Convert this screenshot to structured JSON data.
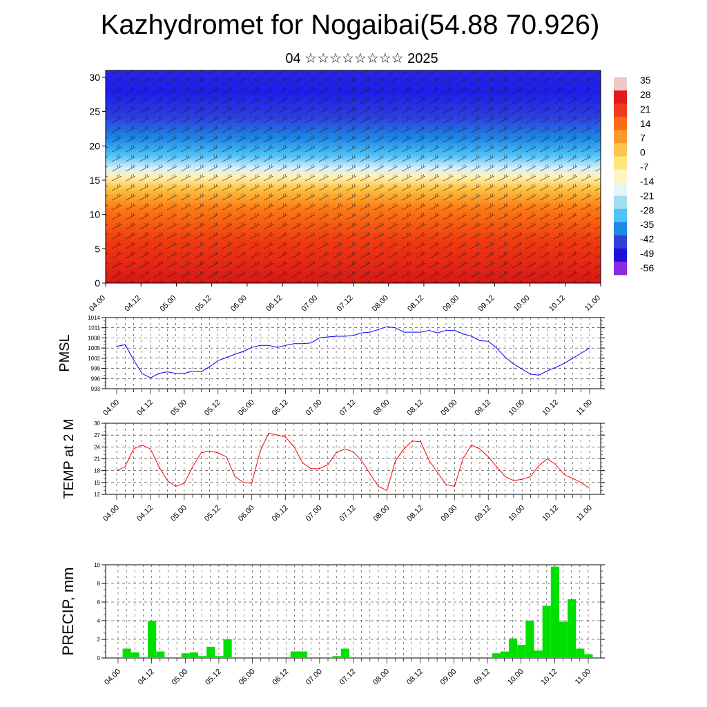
{
  "title": "Kazhydromet for Nogaibai(54.88 70.926)",
  "subtitle": "04 ☆☆☆☆☆☆☆☆ 2025",
  "time_labels": [
    "04.00",
    "04.12",
    "05.00",
    "05.12",
    "06.00",
    "06.12",
    "07.00",
    "07.12",
    "08.00",
    "08.12",
    "09.00",
    "09.12",
    "10.00",
    "10.12",
    "11.00"
  ],
  "chart_data": [
    {
      "type": "heatmap",
      "description_units": "temperature by height (km) and time with wind barbs",
      "y_ticks": [
        "0",
        "5",
        "10",
        "15",
        "20",
        "25",
        "30"
      ],
      "ylim": [
        0,
        31
      ],
      "colorbar_labels": [
        "35",
        "28",
        "21",
        "14",
        "7",
        "0",
        "-7",
        "-14",
        "-21",
        "-28",
        "-35",
        "-42",
        "-49",
        "-56"
      ],
      "colorbar_colors": [
        "#f0c8c8",
        "#e31a1c",
        "#f03b20",
        "#fd6a1a",
        "#fd9a2a",
        "#fec44f",
        "#ffe680",
        "#fff5c0",
        "#e8f4f8",
        "#a6dcf0",
        "#4fc3f7",
        "#1e88e5",
        "#3040d8",
        "#2010e0",
        "#8a2be2"
      ]
    },
    {
      "type": "line",
      "ylabel": "PMSL",
      "y_ticks": [
        "1014",
        "1011",
        "1008",
        "1005",
        "1002",
        "999",
        "996",
        "993"
      ],
      "ylim": [
        993,
        1014
      ],
      "color": "#0000ff",
      "x": [
        0,
        0.5,
        1,
        1.5,
        2,
        2.5,
        3,
        3.5,
        4,
        4.5,
        5,
        5.5,
        6,
        6.5,
        7,
        7.5,
        8,
        8.5,
        9,
        9.5,
        10,
        10.5,
        11,
        11.5,
        12,
        12.5,
        13,
        13.5,
        14,
        14.5,
        15,
        15.5,
        16,
        16.5,
        17,
        17.5,
        18,
        18.5,
        19,
        19.5,
        20,
        20.5,
        21,
        21.5,
        22,
        22.5,
        23,
        23.5,
        24,
        24.5,
        25,
        25.5,
        26,
        26.5,
        27,
        27.5,
        28
      ],
      "values": [
        1005.5,
        1006,
        1001.5,
        997.5,
        996.2,
        997.5,
        998,
        997.5,
        997.5,
        998.2,
        998,
        999.5,
        1001.3,
        1002.2,
        1003.2,
        1004,
        1005.2,
        1005.8,
        1005.8,
        1005.2,
        1005.8,
        1006.3,
        1006.3,
        1006.5,
        1008,
        1008.3,
        1008.5,
        1008.5,
        1008.7,
        1009.5,
        1009.7,
        1010.5,
        1011.3,
        1011,
        1009.7,
        1009.7,
        1009.7,
        1010.2,
        1009.5,
        1010.2,
        1010.2,
        1009.2,
        1008.5,
        1007.2,
        1007,
        1005,
        1002.3,
        1000.3,
        998.8,
        997.3,
        997,
        998.3,
        999.3,
        1000.5,
        1002,
        1003.5,
        1005
      ]
    },
    {
      "type": "line",
      "ylabel": "TEMP at 2 M",
      "y_ticks": [
        "30",
        "27",
        "24",
        "21",
        "18",
        "15",
        "12"
      ],
      "ylim": [
        12,
        30
      ],
      "color": "#ff0000",
      "x": [
        0,
        0.5,
        1,
        1.5,
        2,
        2.5,
        3,
        3.5,
        4,
        4.5,
        5,
        5.5,
        6,
        6.5,
        7,
        7.5,
        8,
        8.5,
        9,
        9.5,
        10,
        10.5,
        11,
        11.5,
        12,
        12.5,
        13,
        13.5,
        14,
        14.5,
        15,
        15.5,
        16,
        16.5,
        17,
        17.5,
        18,
        18.5,
        19,
        19.5,
        20,
        20.5,
        21,
        21.5,
        22,
        22.5,
        23,
        23.5,
        24,
        24.5,
        25,
        25.5,
        26,
        26.5,
        27,
        27.5,
        28
      ],
      "values": [
        18,
        19,
        23.5,
        24.5,
        23.5,
        19,
        15.5,
        14,
        14.8,
        19,
        22.5,
        23,
        22.5,
        21.5,
        16.5,
        15,
        14.8,
        23,
        27.5,
        27,
        26.5,
        24,
        20,
        18.5,
        18.5,
        19.5,
        22.5,
        23.5,
        22.8,
        20.5,
        17.2,
        14,
        13,
        20.5,
        23.5,
        25.5,
        25.3,
        20.5,
        17.5,
        14.5,
        14,
        21,
        24.5,
        23.5,
        21.5,
        19,
        16.5,
        15.5,
        15.8,
        16.5,
        19.3,
        21,
        19.5,
        17,
        16,
        15,
        13.5
      ]
    },
    {
      "type": "bar",
      "ylabel": "PRECIP, mm",
      "y_ticks": [
        "10",
        "8",
        "6",
        "4",
        "2",
        "0"
      ],
      "ylim": [
        0,
        10
      ],
      "color": "#00e000",
      "x": [
        0,
        1,
        2,
        3,
        4,
        5,
        6,
        7,
        8,
        9,
        10,
        11,
        12,
        13,
        14,
        15,
        16,
        17,
        18,
        19,
        20,
        21,
        22,
        23,
        24,
        25,
        26,
        27,
        28,
        29,
        30,
        31,
        32,
        33,
        34,
        35,
        36,
        37,
        38,
        39,
        40,
        41,
        42,
        43,
        44,
        45,
        46,
        47,
        48,
        49,
        50,
        51,
        52,
        53,
        54,
        55,
        56
      ],
      "values": [
        0,
        1,
        0.6,
        0,
        4,
        0.7,
        0,
        0,
        0.5,
        0.6,
        0.2,
        1.2,
        0.2,
        2,
        0,
        0,
        0,
        0,
        0,
        0,
        0,
        0.7,
        0.7,
        0,
        0,
        0,
        0.2,
        1,
        0,
        0,
        0,
        0,
        0,
        0,
        0,
        0,
        0,
        0,
        0,
        0,
        0,
        0,
        0.1,
        0,
        0,
        0.5,
        0.7,
        2.1,
        1.4,
        4,
        0.8,
        5.6,
        9.8,
        3.9,
        6.3,
        1,
        0.4
      ]
    }
  ]
}
